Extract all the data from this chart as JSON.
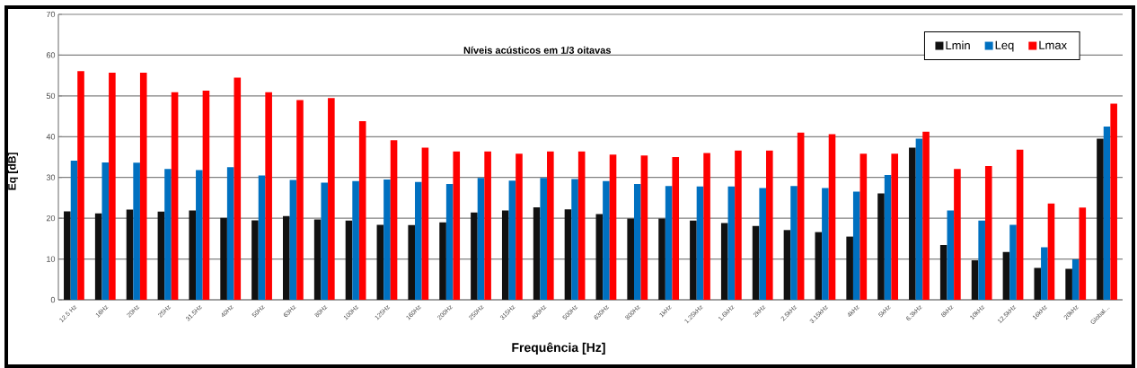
{
  "chart_data": {
    "type": "bar",
    "title": "Níveis acústicos em 1/3 oitavas",
    "xlabel": "Frequência [Hz]",
    "ylabel": "Eq [dB]",
    "categories": [
      "12.5 Hz",
      "16Hz",
      "20Hz",
      "25Hz",
      "31.5Hz",
      "40Hz",
      "50Hz",
      "63Hz",
      "80Hz",
      "100Hz",
      "125Hz",
      "160Hz",
      "200Hz",
      "250Hz",
      "315Hz",
      "400Hz",
      "500Hz",
      "630Hz",
      "800Hz",
      "1kHz",
      "1.25kHz",
      "1.6kHz",
      "2kHz",
      "2.5kHz",
      "3.15kHz",
      "4kHz",
      "5kHz",
      "6.3kHz",
      "8kHz",
      "10kHz",
      "12.5kHz",
      "16kHz",
      "20kHz",
      "Global…"
    ],
    "series": [
      {
        "name": "Lmin",
        "color": "#111111",
        "values": [
          21.7,
          21.2,
          22.1,
          21.6,
          21.9,
          20.1,
          19.5,
          20.5,
          19.7,
          19.4,
          18.4,
          18.3,
          19.0,
          21.4,
          21.9,
          22.7,
          22.2,
          21.0,
          19.9,
          19.9,
          19.4,
          18.8,
          18.1,
          17.1,
          16.6,
          15.5,
          26.1,
          37.3,
          13.4,
          9.7,
          11.7,
          7.8,
          7.6,
          39.5
        ]
      },
      {
        "name": "Leq",
        "color": "#0070c0",
        "values": [
          34.1,
          33.7,
          33.6,
          32.1,
          31.8,
          32.5,
          30.5,
          29.4,
          28.7,
          29.1,
          29.5,
          28.9,
          28.4,
          29.9,
          29.2,
          29.9,
          29.6,
          29.1,
          28.4,
          27.9,
          27.8,
          27.8,
          27.4,
          27.9,
          27.4,
          26.5,
          30.6,
          39.5,
          21.9,
          19.4,
          18.4,
          12.9,
          9.9,
          42.5
        ]
      },
      {
        "name": "Lmax",
        "color": "#ff0000",
        "values": [
          56.1,
          55.7,
          55.7,
          50.9,
          51.3,
          54.5,
          50.9,
          49.0,
          49.5,
          43.8,
          39.1,
          37.3,
          36.4,
          36.4,
          35.8,
          36.4,
          36.4,
          35.6,
          35.4,
          35.0,
          36.0,
          36.6,
          36.6,
          41.0,
          40.6,
          35.8,
          35.8,
          41.2,
          32.1,
          32.8,
          36.8,
          23.6,
          22.6,
          48.1
        ]
      }
    ],
    "ylim": [
      0,
      70
    ],
    "yticks": [
      0,
      10,
      20,
      30,
      40,
      50,
      60,
      70
    ],
    "grid": "y",
    "legend": "top right"
  }
}
